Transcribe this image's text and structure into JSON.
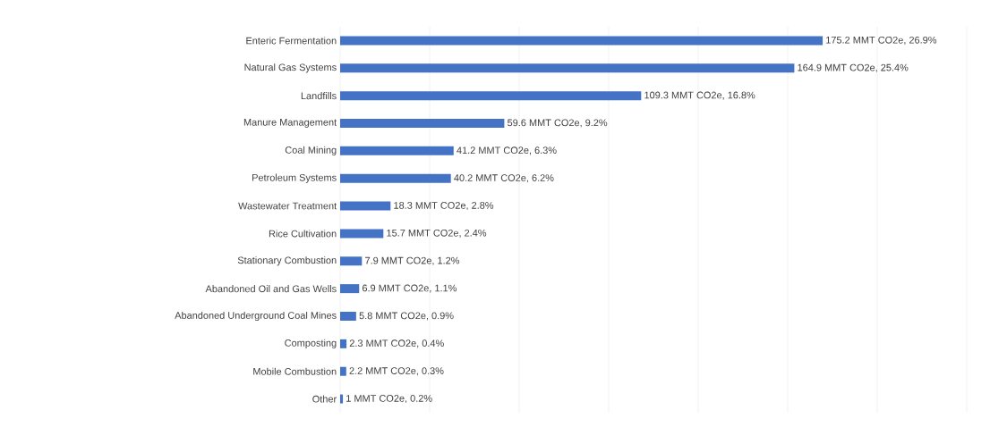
{
  "chart_data": {
    "type": "bar",
    "orientation": "horizontal",
    "color": "#4472c4",
    "categories": [
      "Enteric Fermentation",
      "Natural Gas Systems",
      "Landfills",
      "Manure Management",
      "Coal Mining",
      "Petroleum Systems",
      "Wastewater Treatment",
      "Rice Cultivation",
      "Stationary Combustion",
      "Abandoned Oil and Gas Wells",
      "Abandoned Underground Coal Mines",
      "Composting",
      "Mobile Combustion",
      "Other"
    ],
    "values": [
      175.2,
      164.9,
      109.3,
      59.6,
      41.2,
      40.2,
      18.3,
      15.7,
      7.9,
      6.9,
      5.8,
      2.3,
      2.2,
      1
    ],
    "value_labels": [
      "175.2 MMT CO2e, 26.9%",
      "164.9 MMT CO2e, 25.4%",
      "109.3 MMT CO2e, 16.8%",
      "59.6 MMT CO2e, 9.2%",
      "41.2 MMT CO2e, 6.3%",
      "40.2 MMT CO2e, 6.2%",
      "18.3 MMT CO2e, 2.8%",
      "15.7 MMT CO2e, 2.4%",
      "7.9 MMT CO2e, 1.2%",
      "6.9 MMT CO2e, 1.1%",
      "5.8 MMT CO2e, 0.9%",
      "2.3 MMT CO2e, 0.4%",
      "2.2 MMT CO2e, 0.3%",
      "1 MMT CO2e, 0.2%"
    ],
    "xlim": [
      0,
      227.5
    ],
    "xticks": [
      {
        "value": 0,
        "label": null
      },
      {
        "value": 32.5,
        "label": null
      },
      {
        "value": 65,
        "label": null
      },
      {
        "value": 97.5,
        "label": null
      },
      {
        "value": 130,
        "label": null
      },
      {
        "value": 162.5,
        "label": null
      },
      {
        "value": 195,
        "label": null
      },
      {
        "value": 227.5,
        "label": null
      }
    ],
    "grid": "x",
    "tick_labels": "y"
  }
}
